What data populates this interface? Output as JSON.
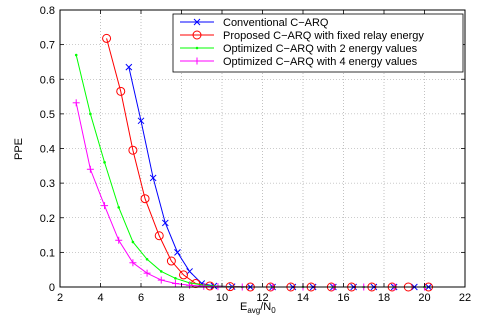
{
  "chart_data": {
    "type": "line",
    "xlabel": {
      "main": "E",
      "sub1": "avg",
      "mid": "/N",
      "sub2": "0"
    },
    "ylabel": "PPE",
    "xlim": [
      2,
      22
    ],
    "ylim": [
      0,
      0.8
    ],
    "xticks": [
      2,
      4,
      6,
      8,
      10,
      12,
      14,
      16,
      18,
      20,
      22
    ],
    "yticks": [
      0,
      0.1,
      0.2,
      0.3,
      0.4,
      0.5,
      0.6,
      0.7,
      0.8
    ],
    "grid": true,
    "legend_position": "top-right",
    "series": [
      {
        "name": "Conventional C−ARQ",
        "color": "#0000ff",
        "marker": "x",
        "x": [
          5.4,
          6.0,
          6.6,
          7.2,
          7.8,
          8.4,
          9.0,
          9.6,
          10.5,
          11.4,
          12.5,
          13.5,
          14.5,
          15.5,
          16.5,
          17.5,
          18.5,
          19.5,
          20.2
        ],
        "y": [
          0.635,
          0.48,
          0.315,
          0.185,
          0.1,
          0.045,
          0.01,
          0.003,
          0.001,
          0.0,
          0.0,
          0.0,
          0.0,
          0.0,
          0.0,
          0.0,
          0.0,
          0.0,
          0.0
        ]
      },
      {
        "name": "Proposed C−ARQ  with fixed relay energy",
        "color": "#ff0000",
        "marker": "o",
        "x": [
          4.3,
          5.0,
          5.6,
          6.2,
          6.9,
          7.5,
          8.1,
          8.7,
          9.4,
          10.4,
          11.4,
          12.4,
          13.4,
          14.4,
          15.4,
          16.4,
          17.4,
          18.4,
          19.2,
          20.2
        ],
        "y": [
          0.718,
          0.565,
          0.395,
          0.255,
          0.148,
          0.075,
          0.035,
          0.01,
          0.003,
          0.001,
          0.0,
          0.0,
          0.0,
          0.0,
          0.0,
          0.0,
          0.0,
          0.0,
          0.0,
          0.0
        ]
      },
      {
        "name": "Optimized C−ARQ with 2 energy values",
        "color": "#00ff00",
        "marker": ".",
        "x": [
          2.8,
          3.5,
          4.2,
          4.9,
          5.6,
          6.3,
          7.0,
          7.7,
          8.4,
          9.1,
          9.8,
          11.0,
          12.5,
          14.0,
          15.5,
          17.0,
          18.5,
          20.0
        ],
        "y": [
          0.67,
          0.5,
          0.36,
          0.23,
          0.13,
          0.08,
          0.045,
          0.025,
          0.012,
          0.005,
          0.002,
          0.0,
          0.0,
          0.0,
          0.0,
          0.0,
          0.0,
          0.0
        ]
      },
      {
        "name": "Optimized C−ARQ with 4 energy values",
        "color": "#ff00ff",
        "marker": "+",
        "x": [
          2.8,
          3.5,
          4.2,
          4.9,
          5.6,
          6.3,
          7.0,
          7.7,
          8.4,
          9.1,
          9.8,
          11.0,
          12.5,
          14.0,
          15.5,
          17.0,
          18.5,
          20.0
        ],
        "y": [
          0.532,
          0.34,
          0.235,
          0.135,
          0.07,
          0.04,
          0.02,
          0.01,
          0.005,
          0.002,
          0.001,
          0.0,
          0.0,
          0.0,
          0.0,
          0.0,
          0.0,
          0.0
        ]
      }
    ]
  }
}
